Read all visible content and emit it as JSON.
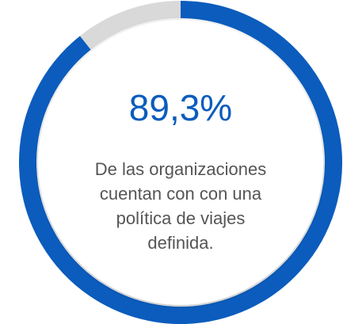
{
  "chart_data": {
    "type": "donut",
    "values": [
      89.3,
      10.7
    ],
    "value_labels": [
      "89,3%",
      null
    ],
    "colors": [
      "#0b5cbd",
      "#d9d9d9"
    ],
    "text_lines": [
      "De las organizaciones",
      "cuentan con con una",
      "política de viajes",
      "definida."
    ]
  }
}
